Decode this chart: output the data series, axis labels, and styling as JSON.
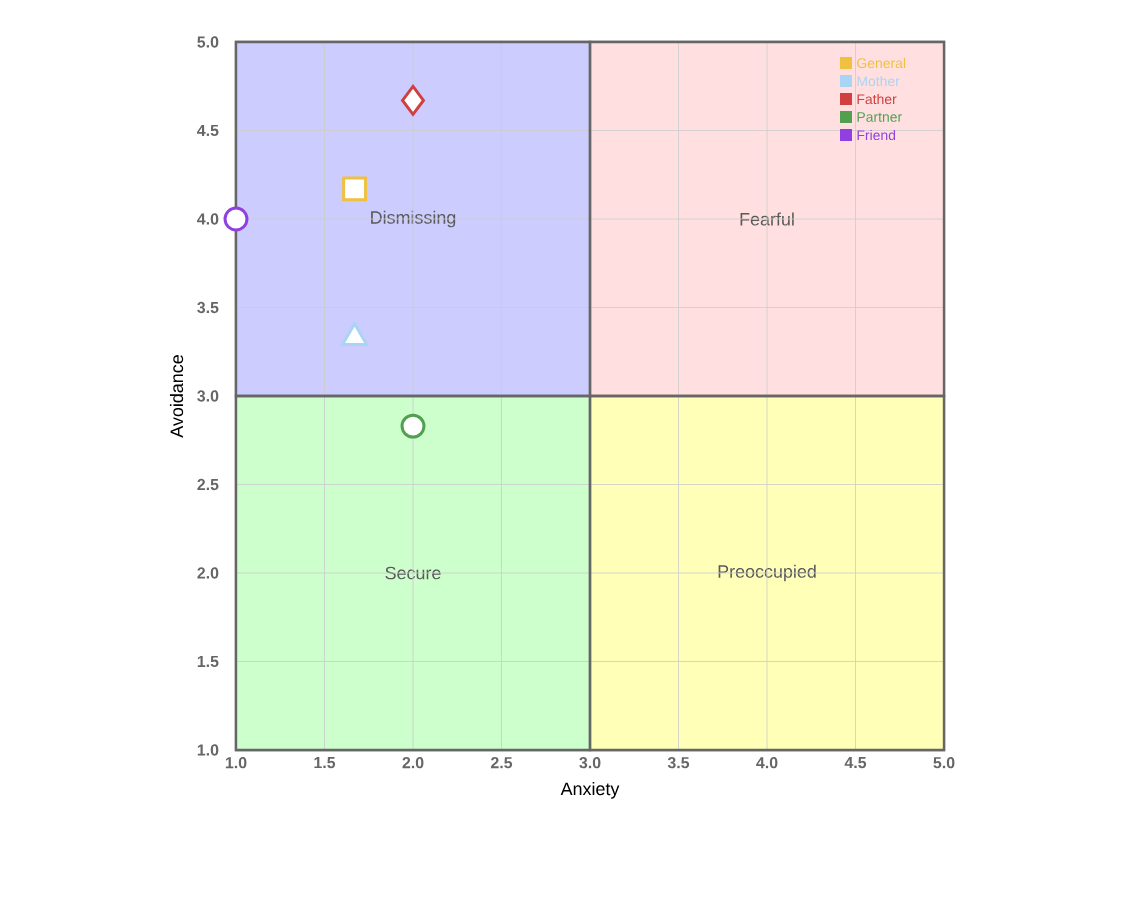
{
  "chart_data": {
    "type": "scatter",
    "xlabel": "Anxiety",
    "ylabel": "Avoidance",
    "xlim": [
      1,
      5
    ],
    "ylim": [
      1,
      5
    ],
    "xticks": [
      {
        "value": 1,
        "label": "1.0"
      },
      {
        "value": 1.5,
        "label": "1.5"
      },
      {
        "value": 2,
        "label": "2.0"
      },
      {
        "value": 2.5,
        "label": "2.5"
      },
      {
        "value": 3,
        "label": "3.0"
      },
      {
        "value": 3.5,
        "label": "3.5"
      },
      {
        "value": 4,
        "label": "4.0"
      },
      {
        "value": 4.5,
        "label": "4.5"
      },
      {
        "value": 5,
        "label": "5.0"
      }
    ],
    "yticks": [
      {
        "value": 1,
        "label": "1.0"
      },
      {
        "value": 1.5,
        "label": "1.5"
      },
      {
        "value": 2,
        "label": "2.0"
      },
      {
        "value": 2.5,
        "label": "2.5"
      },
      {
        "value": 3,
        "label": "3.0"
      },
      {
        "value": 3.5,
        "label": "3.5"
      },
      {
        "value": 4,
        "label": "4.0"
      },
      {
        "value": 4.5,
        "label": "4.5"
      },
      {
        "value": 5,
        "label": "5.0"
      }
    ],
    "grid": true,
    "legend": "top right",
    "bands": [
      {
        "axis": "x",
        "from": 1,
        "to": 3,
        "label": "Dismissing",
        "color": "#ccccff"
      },
      {
        "axis": "x",
        "from": 3,
        "to": 5,
        "label": "Fearful",
        "color": "#ffdfdf"
      },
      {
        "axis": "x",
        "from": 1,
        "to": 3,
        "label": "Secure",
        "color": "#ccffcc"
      },
      {
        "axis": "x",
        "from": 3,
        "to": 5,
        "label": "Preoccupied",
        "color": "#ffffb8"
      }
    ],
    "series": [
      {
        "name": "General",
        "color": "#f0c040",
        "marker": "square",
        "x": [
          1.67
        ],
        "values": [
          4.17
        ]
      },
      {
        "name": "Mother",
        "color": "#aad4f5",
        "marker": "triangle",
        "x": [
          1.67
        ],
        "values": [
          3.33
        ]
      },
      {
        "name": "Father",
        "color": "#d04040",
        "marker": "diamond",
        "x": [
          2.0
        ],
        "values": [
          4.67
        ]
      },
      {
        "name": "Partner",
        "color": "#50a050",
        "marker": "circle",
        "x": [
          2.0
        ],
        "values": [
          2.83
        ]
      },
      {
        "name": "Friend",
        "color": "#9040e0",
        "marker": "circle",
        "x": [
          1.0
        ],
        "values": [
          4.0
        ]
      }
    ]
  }
}
